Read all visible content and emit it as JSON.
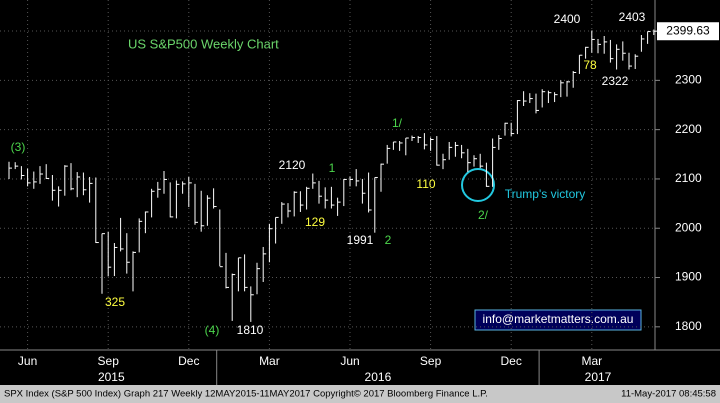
{
  "chart_data": {
    "type": "ohlc",
    "title": "US S&P500 Weekly Chart",
    "color": "#ffffff",
    "categories": [
      null,
      null,
      null,
      "Jun",
      null,
      null,
      null,
      null,
      null,
      null,
      null,
      null,
      null,
      null,
      null,
      null,
      "Sep",
      null,
      null,
      null,
      null,
      null,
      null,
      null,
      null,
      null,
      null,
      null,
      null,
      "Dec",
      null,
      null,
      null,
      null,
      null,
      null,
      null,
      null,
      null,
      null,
      null,
      null,
      "Mar",
      null,
      null,
      null,
      null,
      null,
      null,
      null,
      null,
      null,
      null,
      null,
      null,
      "Jun",
      null,
      null,
      null,
      null,
      null,
      null,
      null,
      null,
      null,
      null,
      null,
      null,
      "Sep",
      null,
      null,
      null,
      null,
      null,
      null,
      null,
      null,
      null,
      null,
      null,
      null,
      "Dec",
      null,
      null,
      null,
      null,
      null,
      null,
      null,
      null,
      null,
      null,
      null,
      null,
      "Mar",
      null,
      null,
      null,
      null,
      null,
      null,
      null,
      null,
      null,
      null
    ],
    "x_groups": [
      {
        "label": "2015",
        "first": 0,
        "last": 33
      },
      {
        "label": "2016",
        "first": 34,
        "last": 85
      },
      {
        "label": "2017",
        "first": 86,
        "last": 104
      }
    ],
    "high": [
      2135,
      2134,
      2126,
      2121,
      2115,
      2126,
      2130,
      2108,
      2085,
      2128,
      2132,
      2114,
      2113,
      2104,
      2103,
      1989,
      1993,
      1970,
      2021,
      1990,
      1953,
      2020,
      2034,
      2080,
      2094,
      2116,
      2093,
      2097,
      2095,
      2104,
      2090,
      2076,
      2067,
      2081,
      2038,
      1950,
      1908,
      1940,
      1947,
      1882,
      1930,
      1962,
      2009,
      2022,
      2053,
      2051,
      2075,
      2075,
      2084,
      2111,
      2096,
      2083,
      2084,
      2062,
      2100,
      2105,
      2120,
      2100,
      2113,
      2103,
      2131,
      2169,
      2175,
      2177,
      2183,
      2188,
      2187,
      2193,
      2184,
      2187,
      2151,
      2175,
      2175,
      2169,
      2161,
      2148,
      2151,
      2133,
      2182,
      2189,
      2214,
      2214,
      2260,
      2278,
      2274,
      2273,
      2282,
      2279,
      2276,
      2300,
      2299,
      2319,
      2351,
      2368,
      2401,
      2384,
      2390,
      2382,
      2373,
      2379,
      2356,
      2353,
      2392,
      2399,
      2403
    ],
    "low": [
      2100,
      2120,
      2099,
      2085,
      2080,
      2090,
      2100,
      2056,
      2044,
      2066,
      2077,
      2063,
      2067,
      2052,
      1970,
      1867,
      1903,
      1903,
      1953,
      1908,
      1872,
      1951,
      1990,
      2022,
      2062,
      2070,
      2022,
      2020,
      2070,
      2043,
      2007,
      1993,
      2005,
      2040,
      1923,
      1878,
      1812,
      1872,
      1872,
      1810,
      1866,
      1891,
      1931,
      1969,
      2009,
      2022,
      2024,
      2033,
      2038,
      2080,
      2050,
      2040,
      2040,
      2025,
      2045,
      2085,
      2085,
      2050,
      2032,
      1991,
      2074,
      2131,
      2159,
      2157,
      2148,
      2177,
      2173,
      2160,
      2157,
      2127,
      2120,
      2139,
      2145,
      2142,
      2114,
      2125,
      2122,
      2084,
      2084,
      2159,
      2188,
      2187,
      2191,
      2248,
      2254,
      2233,
      2245,
      2254,
      2256,
      2266,
      2267,
      2285,
      2313,
      2344,
      2356,
      2355,
      2354,
      2336,
      2322,
      2340,
      2322,
      2323,
      2358,
      2374,
      2392
    ],
    "close": [
      2122,
      2126,
      2107,
      2092,
      2094,
      2110,
      2101,
      2077,
      2077,
      2126,
      2080,
      2104,
      2078,
      2091,
      1971,
      1989,
      1921,
      1961,
      1958,
      1931,
      1951,
      2014,
      2033,
      2075,
      2079,
      2099,
      2023,
      2089,
      2090,
      2092,
      2012,
      2005,
      2061,
      2044,
      1922,
      1880,
      1906,
      1940,
      1880,
      1865,
      1918,
      1948,
      1999,
      2022,
      2049,
      2035,
      2073,
      2047,
      2081,
      2092,
      2065,
      2057,
      2047,
      2053,
      2099,
      2099,
      2096,
      2071,
      2037,
      2103,
      2130,
      2162,
      2175,
      2173,
      2183,
      2184,
      2184,
      2169,
      2180,
      2128,
      2139,
      2164,
      2168,
      2153,
      2133,
      2141,
      2126,
      2085,
      2164,
      2182,
      2213,
      2192,
      2259,
      2258,
      2263,
      2239,
      2277,
      2275,
      2271,
      2295,
      2297,
      2316,
      2351,
      2367,
      2383,
      2373,
      2378,
      2344,
      2363,
      2355,
      2329,
      2349,
      2384,
      2399,
      2399.63
    ],
    "ylim": [
      1753,
      2463
    ],
    "yticks": [
      1800,
      1900,
      2000,
      2100,
      2200,
      2300,
      2400
    ],
    "grid": true,
    "annotations": [
      {
        "text": "(3)",
        "color": "#4cd64c"
      },
      {
        "text": "325",
        "color": "#ffff40"
      },
      {
        "text": "(4)",
        "color": "#4cd64c"
      },
      {
        "text": "1810",
        "color": "#ffffff"
      },
      {
        "text": "2120",
        "color": "#ffffff"
      },
      {
        "text": "129",
        "color": "#ffff40"
      },
      {
        "text": "1",
        "color": "#4cd64c"
      },
      {
        "text": "1991",
        "color": "#ffffff"
      },
      {
        "text": "2",
        "color": "#4cd64c"
      },
      {
        "text": "1/",
        "color": "#4cd64c"
      },
      {
        "text": "110",
        "color": "#ffff40"
      },
      {
        "text": "2/",
        "color": "#4cd64c"
      },
      {
        "text": "Trump's victory",
        "color": "#22c8e0"
      },
      {
        "text": "2400",
        "color": "#ffffff"
      },
      {
        "text": "78",
        "color": "#ffff40"
      },
      {
        "text": "2322",
        "color": "#ffffff"
      },
      {
        "text": "2403",
        "color": "#ffffff"
      }
    ],
    "watermark": "info@marketmatters.com.au",
    "footer": {
      "left": "SPX Index (S&P 500 Index) Graph 217  Weekly 12MAY2015-11MAY2017  Copyright© 2017 Bloomberg Finance L.P.",
      "right": "11-May-2017 08:45:58"
    }
  }
}
